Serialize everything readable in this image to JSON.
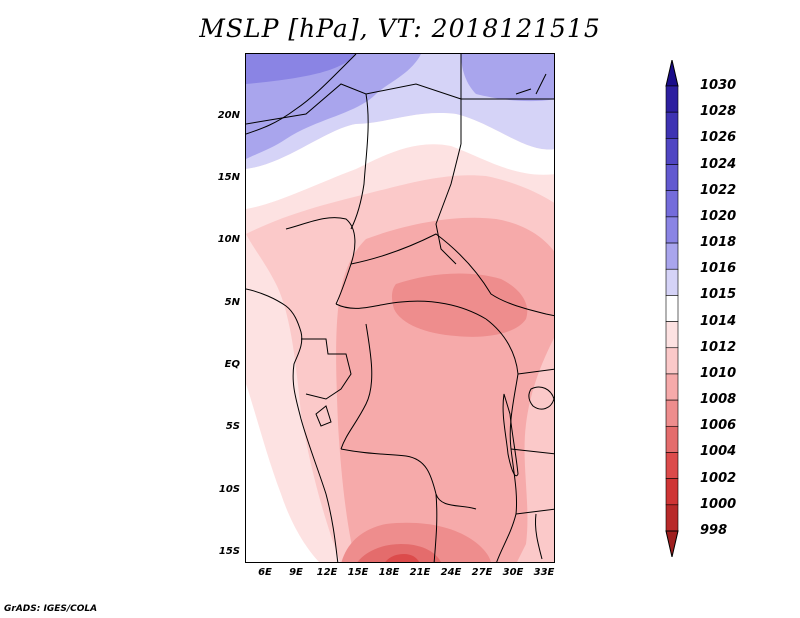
{
  "title": "MSLP [hPa], VT: 2018121515",
  "credit": "GrADS: IGES/COLA",
  "lat_ticks": [
    "20N",
    "15N",
    "10N",
    "5N",
    "EQ",
    "5S",
    "10S",
    "15S"
  ],
  "lon_ticks": [
    "6E",
    "9E",
    "12E",
    "15E",
    "18E",
    "21E",
    "24E",
    "27E",
    "30E",
    "33E"
  ],
  "legend": {
    "labels": [
      "1030",
      "1028",
      "1026",
      "1024",
      "1022",
      "1020",
      "1018",
      "1016",
      "1015",
      "1014",
      "1012",
      "1010",
      "1008",
      "1006",
      "1004",
      "1002",
      "1000",
      "998"
    ],
    "colors": [
      "#1a0d8a",
      "#2d1fa0",
      "#3e33b3",
      "#5046c3",
      "#6259d0",
      "#746cdb",
      "#8a84e4",
      "#a9a5ed",
      "#d5d3f7",
      "#ffffff",
      "#fde2e2",
      "#fbc9c9",
      "#f6aaaa",
      "#ee8d8d",
      "#e46c6c",
      "#dc4b4b",
      "#cf3535",
      "#b82a2a",
      "#9f2020"
    ]
  },
  "field_colors": {
    "p1016": "#a9a5ed",
    "p1015": "#d5d3f7",
    "p1014": "#ffffff",
    "p1012": "#fde2e2",
    "p1010": "#fbc9c9",
    "p1008": "#f6aaaa",
    "p1006": "#ee8d8d",
    "p1004": "#e46c6c"
  }
}
